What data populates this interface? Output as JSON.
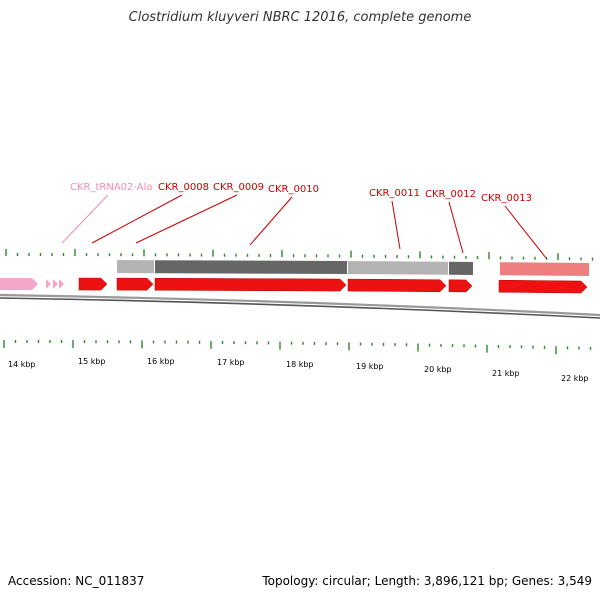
{
  "title": "Clostridium kluyveri NBRC 12016, complete genome",
  "footer": {
    "accession_label": "Accession:",
    "accession": "NC_011837",
    "topology_label": "Topology:",
    "topology": "circular",
    "length_label": "Length:",
    "length": "3,896,121 bp",
    "genes_label": "Genes:",
    "genes": "3,549"
  },
  "colors": {
    "cds_forward": "#ee1111",
    "cds_light": "#ef7f7f",
    "trna": "#f4a6c8",
    "trna_label": "#f08cb4",
    "gene_label": "#cc0000",
    "conservation_light": "#b3b3b3",
    "conservation_dark": "#666666",
    "tick": "#2a8a2a",
    "backbone": "#777777"
  },
  "genes": [
    {
      "id": "CKR_tRNA02-Ala",
      "type": "trna",
      "color": "trna_label"
    },
    {
      "id": "CKR_0008",
      "type": "cds",
      "color": "gene_label"
    },
    {
      "id": "CKR_0009",
      "type": "cds",
      "color": "gene_label"
    },
    {
      "id": "CKR_0010",
      "type": "cds",
      "color": "gene_label"
    },
    {
      "id": "CKR_0011",
      "type": "cds",
      "color": "gene_label"
    },
    {
      "id": "CKR_0012",
      "type": "cds",
      "color": "gene_label"
    },
    {
      "id": "CKR_0013",
      "type": "cds",
      "color": "gene_label"
    }
  ],
  "scale": {
    "labels": [
      "14 kbp",
      "15 kbp",
      "16 kbp",
      "17 kbp",
      "18 kbp",
      "19 kbp",
      "20 kbp",
      "21 kbp",
      "22 kbp"
    ]
  }
}
